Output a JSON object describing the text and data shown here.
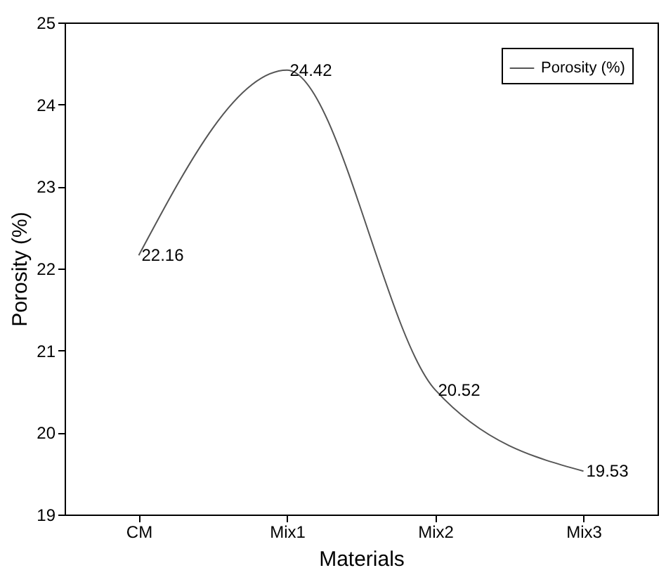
{
  "chart_data": {
    "type": "line",
    "xlabel": "Materials",
    "ylabel": "Porosity (%)",
    "categories": [
      "CM",
      "Mix1",
      "Mix2",
      "Mix3"
    ],
    "series": [
      {
        "name": "Porosity (%)",
        "color": "#555555",
        "values": [
          22.16,
          24.42,
          20.52,
          19.53
        ]
      }
    ],
    "ylim": [
      19,
      25
    ],
    "yticks": [
      19,
      20,
      21,
      22,
      23,
      24,
      25
    ],
    "legend": "top right",
    "data_labels": true,
    "grid": false
  }
}
